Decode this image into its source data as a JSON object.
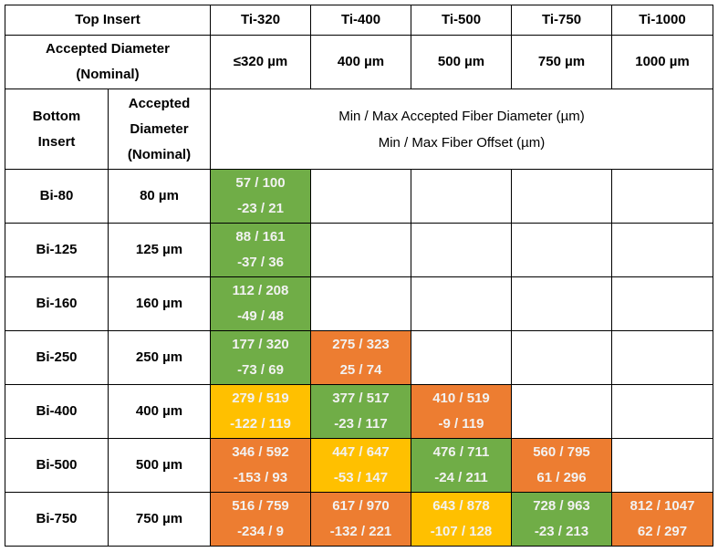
{
  "header": {
    "top_insert": "Top Insert",
    "top_inserts": [
      "Ti-320",
      "Ti-400",
      "Ti-500",
      "Ti-750",
      "Ti-1000"
    ],
    "accepted_label": [
      "Accepted Diameter",
      "(Nominal)"
    ],
    "top_diameters": [
      "≤320 µm",
      "400 µm",
      "500 µm",
      "750 µm",
      "1000 µm"
    ],
    "bottom_insert": [
      "Bottom",
      "Insert"
    ],
    "bottom_accepted_label": [
      "Accepted",
      "Diameter",
      "(Nominal)"
    ],
    "description": [
      "Min / Max Accepted Fiber Diameter (µm)",
      "Min / Max Fiber Offset (µm)"
    ]
  },
  "table": {
    "rows": [
      {
        "insert": "Bi-80",
        "diameter": "80 µm",
        "cells": [
          {
            "lines": [
              "57 / 100",
              "-23 / 21"
            ],
            "color": "#70ad47"
          },
          null,
          null,
          null,
          null
        ]
      },
      {
        "insert": "Bi-125",
        "diameter": "125 µm",
        "cells": [
          {
            "lines": [
              "88 / 161",
              "-37 / 36"
            ],
            "color": "#70ad47"
          },
          null,
          null,
          null,
          null
        ]
      },
      {
        "insert": "Bi-160",
        "diameter": "160 µm",
        "cells": [
          {
            "lines": [
              "112 / 208",
              "-49 / 48"
            ],
            "color": "#70ad47"
          },
          null,
          null,
          null,
          null
        ]
      },
      {
        "insert": "Bi-250",
        "diameter": "250 µm",
        "cells": [
          {
            "lines": [
              "177 / 320",
              "-73 / 69"
            ],
            "color": "#70ad47"
          },
          {
            "lines": [
              "275 / 323",
              "25 / 74"
            ],
            "color": "#ed7d31"
          },
          null,
          null,
          null
        ]
      },
      {
        "insert": "Bi-400",
        "diameter": "400 µm",
        "cells": [
          {
            "lines": [
              "279 / 519",
              "-122 / 119"
            ],
            "color": "#ffc000"
          },
          {
            "lines": [
              "377 / 517",
              "-23 / 117"
            ],
            "color": "#70ad47"
          },
          {
            "lines": [
              "410 / 519",
              "-9 / 119"
            ],
            "color": "#ed7d31"
          },
          null,
          null
        ]
      },
      {
        "insert": "Bi-500",
        "diameter": "500 µm",
        "cells": [
          {
            "lines": [
              "346 / 592",
              "-153 / 93"
            ],
            "color": "#ed7d31"
          },
          {
            "lines": [
              "447 / 647",
              "-53 / 147"
            ],
            "color": "#ffc000"
          },
          {
            "lines": [
              "476 / 711",
              "-24 / 211"
            ],
            "color": "#70ad47"
          },
          {
            "lines": [
              "560 / 795",
              "61 / 296"
            ],
            "color": "#ed7d31"
          },
          null
        ]
      },
      {
        "insert": "Bi-750",
        "diameter": "750 µm",
        "cells": [
          {
            "lines": [
              "516 / 759",
              "-234 / 9"
            ],
            "color": "#ed7d31"
          },
          {
            "lines": [
              "617 / 970",
              "-132 / 221"
            ],
            "color": "#ed7d31"
          },
          {
            "lines": [
              "643 / 878",
              "-107 / 128"
            ],
            "color": "#ffc000"
          },
          {
            "lines": [
              "728 / 963",
              "-23 / 213"
            ],
            "color": "#70ad47"
          },
          {
            "lines": [
              "812 / 1047",
              "62 / 297"
            ],
            "color": "#ed7d31"
          }
        ]
      }
    ]
  }
}
